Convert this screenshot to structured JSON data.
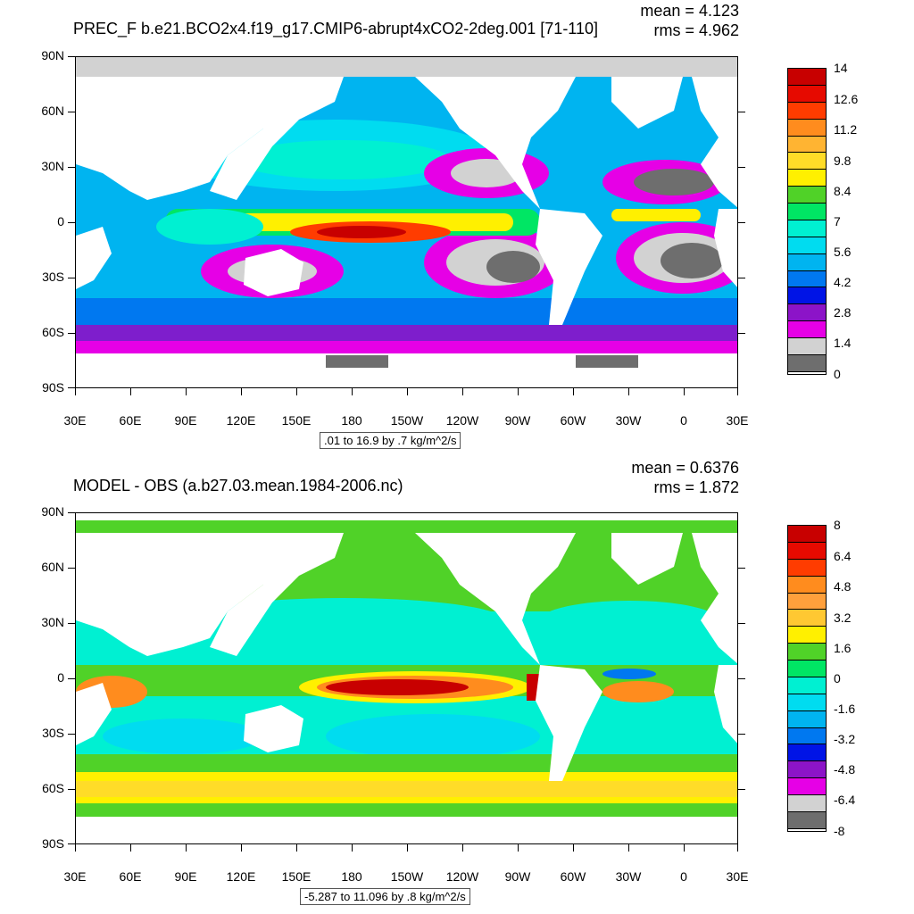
{
  "top": {
    "title": "PREC_F b.e21.BCO2x4.f19_g17.CMIP6-abrupt4xCO2-2deg.001 [71-110]",
    "mean_text": "mean = 4.123",
    "rms_text": "rms = 4.962",
    "range_text": ".01 to 16.9 by .7 kg/m^2/s",
    "colorbar_labels": [
      "14",
      "12.6",
      "11.2",
      "9.8",
      "8.4",
      "7",
      "5.6",
      "4.2",
      "2.8",
      "1.4",
      "0"
    ],
    "colorbar_colors": [
      "#c80000",
      "#e60a00",
      "#ff3c00",
      "#ff8c1e",
      "#ffb432",
      "#ffdc28",
      "#fff000",
      "#50d228",
      "#00e664",
      "#00f0d2",
      "#00dcf0",
      "#00b4f0",
      "#0078f0",
      "#0014e6",
      "#8c14c8",
      "#e600e6",
      "#d2d2d2",
      "#6e6e6e"
    ]
  },
  "bottom": {
    "title": "MODEL - OBS (a.b27.03.mean.1984-2006.nc)",
    "mean_text": "mean = 0.6376",
    "rms_text": "rms = 1.872",
    "range_text": "-5.287 to 11.096 by .8 kg/m^2/s",
    "colorbar_labels": [
      "8",
      "6.4",
      "4.8",
      "3.2",
      "1.6",
      "0",
      "-1.6",
      "-3.2",
      "-4.8",
      "-6.4",
      "-8"
    ],
    "colorbar_colors": [
      "#c80000",
      "#e60a00",
      "#ff3c00",
      "#ff8c1e",
      "#ffa03c",
      "#ffc832",
      "#fff000",
      "#50d228",
      "#00e664",
      "#00f0d2",
      "#00dcf0",
      "#00b4f0",
      "#0078f0",
      "#0014e6",
      "#8c14c8",
      "#e600e6",
      "#d2d2d2",
      "#6e6e6e"
    ]
  },
  "axes": {
    "lat_labels": [
      "90N",
      "60N",
      "30N",
      "0",
      "30S",
      "60S",
      "90S"
    ],
    "lon_labels": [
      "30E",
      "60E",
      "90E",
      "120E",
      "150E",
      "180",
      "150W",
      "120W",
      "90W",
      "60W",
      "30W",
      "0",
      "30E"
    ]
  }
}
